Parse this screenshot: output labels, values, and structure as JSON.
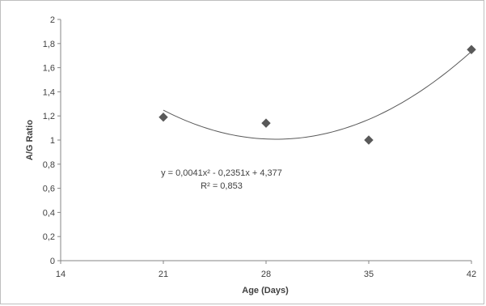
{
  "chart_data": {
    "type": "scatter",
    "xlabel": "Age (Days)",
    "ylabel": "A/G Ratio",
    "xlim": [
      14,
      42
    ],
    "ylim": [
      0,
      2
    ],
    "x_ticks": [
      14,
      21,
      28,
      35,
      42
    ],
    "x_tick_labels": [
      "14",
      "21",
      "28",
      "35",
      "42"
    ],
    "y_ticks": [
      0,
      0.2,
      0.4,
      0.6,
      0.8,
      1.0,
      1.2,
      1.4,
      1.6,
      1.8,
      2.0
    ],
    "y_tick_labels": [
      "0",
      "0,2",
      "0,4",
      "0,6",
      "0,8",
      "1",
      "1,2",
      "1,4",
      "1,6",
      "1,8",
      "2"
    ],
    "grid": false,
    "series": [
      {
        "x": [
          21,
          28,
          35,
          42
        ],
        "y": [
          1.19,
          1.14,
          1.0,
          1.75
        ],
        "marker": "diamond",
        "color": "#595959"
      }
    ],
    "trendline": {
      "type": "polynomial",
      "order": 2,
      "coefficients": [
        0.0041,
        -0.2351,
        4.377
      ],
      "x_range": [
        21,
        42
      ],
      "color": "#595959",
      "equation_text": "y = 0,0041x² - 0,2351x + 4,377",
      "r2_text": "R² = 0,853"
    }
  }
}
